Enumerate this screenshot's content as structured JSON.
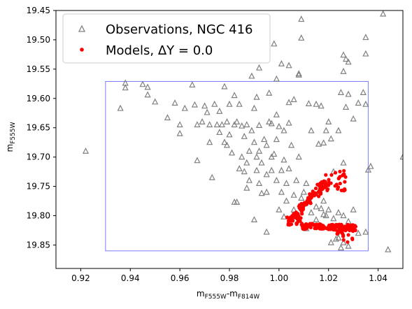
{
  "chart_data": {
    "type": "scatter",
    "xlabel_main": "m",
    "xlabel_sub1": "F555W",
    "xlabel_dash": "-m",
    "xlabel_sub2": "F814W",
    "ylabel_main": "m",
    "ylabel_sub": "F555W",
    "xlim": [
      0.91,
      1.05
    ],
    "ylim": [
      19.89,
      19.45
    ],
    "x_ticks": [
      0.92,
      0.94,
      0.96,
      0.98,
      1.0,
      1.02,
      1.04
    ],
    "x_tick_labels": [
      "0.92",
      "0.94",
      "0.96",
      "0.98",
      "1.00",
      "1.02",
      "1.04"
    ],
    "y_ticks": [
      19.45,
      19.5,
      19.55,
      19.6,
      19.65,
      19.7,
      19.75,
      19.8,
      19.85
    ],
    "y_tick_labels": [
      "19.45",
      "19.50",
      "19.55",
      "19.60",
      "19.65",
      "19.70",
      "19.75",
      "19.80",
      "19.85"
    ],
    "grid": false,
    "legend_position": "top-left",
    "selection_box": {
      "x": [
        0.93,
        1.036
      ],
      "y": [
        19.571,
        19.86
      ],
      "color": "#7b7bff"
    },
    "series": [
      {
        "name": "Observations, NGC 416",
        "marker": "triangle-open",
        "color": "#808080",
        "points": [
          [
            0.922,
            19.69
          ],
          [
            0.936,
            19.617
          ],
          [
            0.938,
            19.574
          ],
          [
            0.938,
            19.582
          ],
          [
            0.945,
            19.576
          ],
          [
            0.947,
            19.581
          ],
          [
            0.947,
            19.594
          ],
          [
            0.95,
            19.606
          ],
          [
            0.955,
            19.633
          ],
          [
            0.958,
            19.608
          ],
          [
            0.96,
            19.645
          ],
          [
            0.96,
            19.66
          ],
          [
            0.962,
            19.617
          ],
          [
            0.965,
            19.577
          ],
          [
            0.966,
            19.611
          ],
          [
            0.967,
            19.645
          ],
          [
            0.967,
            19.706
          ],
          [
            0.969,
            19.64
          ],
          [
            0.97,
            19.613
          ],
          [
            0.971,
            19.624
          ],
          [
            0.972,
            19.645
          ],
          [
            0.972,
            19.675
          ],
          [
            0.973,
            19.735
          ],
          [
            0.974,
            19.61
          ],
          [
            0.975,
            19.645
          ],
          [
            0.976,
            19.622
          ],
          [
            0.976,
            19.658
          ],
          [
            0.977,
            19.645
          ],
          [
            0.978,
            19.58
          ],
          [
            0.978,
            19.675
          ],
          [
            0.979,
            19.68
          ],
          [
            0.979,
            19.64
          ],
          [
            0.98,
            19.61
          ],
          [
            0.98,
            19.662
          ],
          [
            0.981,
            19.693
          ],
          [
            0.982,
            19.645
          ],
          [
            0.983,
            19.64
          ],
          [
            0.984,
            19.72
          ],
          [
            0.985,
            19.647
          ],
          [
            0.985,
            19.7
          ],
          [
            0.986,
            19.725
          ],
          [
            0.986,
            19.665
          ],
          [
            0.987,
            19.645
          ],
          [
            0.987,
            19.71
          ],
          [
            0.988,
            19.69
          ],
          [
            0.988,
            19.74
          ],
          [
            0.989,
            19.655
          ],
          [
            0.99,
            19.617
          ],
          [
            0.99,
            19.675
          ],
          [
            0.991,
            19.7
          ],
          [
            0.991,
            19.723
          ],
          [
            0.992,
            19.646
          ],
          [
            0.992,
            19.69
          ],
          [
            0.992,
            19.745
          ],
          [
            0.993,
            19.71
          ],
          [
            0.994,
            19.67
          ],
          [
            0.995,
            19.68
          ],
          [
            0.995,
            19.73
          ],
          [
            0.995,
            19.76
          ],
          [
            0.996,
            19.64
          ],
          [
            0.997,
            19.7
          ],
          [
            0.997,
            19.723
          ],
          [
            0.998,
            19.695
          ],
          [
            0.999,
            19.74
          ],
          [
            0.999,
            19.67
          ],
          [
            1.0,
            19.648
          ],
          [
            1.001,
            19.76
          ],
          [
            1.001,
            19.723
          ],
          [
            1.002,
            19.655
          ],
          [
            1.002,
            19.705
          ],
          [
            1.003,
            19.745
          ],
          [
            1.003,
            19.775
          ],
          [
            1.004,
            19.72
          ],
          [
            1.005,
            19.68
          ],
          [
            1.006,
            19.79
          ],
          [
            1.006,
            19.765
          ],
          [
            1.007,
            19.74
          ],
          [
            1.008,
            19.7
          ],
          [
            1.009,
            19.77
          ],
          [
            1.01,
            19.76
          ],
          [
            1.01,
            19.78
          ],
          [
            1.011,
            19.745
          ],
          [
            1.012,
            19.77
          ],
          [
            1.013,
            19.795
          ],
          [
            1.015,
            19.785
          ],
          [
            1.016,
            19.76
          ],
          [
            1.017,
            19.788
          ],
          [
            1.018,
            19.775
          ],
          [
            1.019,
            19.8
          ],
          [
            1.02,
            19.79
          ],
          [
            1.022,
            19.805
          ],
          [
            1.024,
            19.795
          ],
          [
            1.026,
            19.8
          ],
          [
            1.028,
            19.81
          ],
          [
            1.03,
            19.79
          ],
          [
            1.035,
            19.828
          ],
          [
            1.032,
            19.83
          ],
          [
            1.025,
            19.855
          ],
          [
            1.026,
            19.846
          ],
          [
            1.028,
            19.852
          ],
          [
            1.021,
            19.846
          ],
          [
            1.024,
            19.838
          ],
          [
            1.023,
            19.84
          ],
          [
            1.044,
            19.858
          ],
          [
            0.982,
            19.777
          ],
          [
            0.983,
            19.777
          ],
          [
            0.987,
            19.753
          ],
          [
            0.99,
            19.807
          ],
          [
            0.993,
            19.762
          ],
          [
            0.995,
            19.828
          ],
          [
            1.0,
            19.79
          ],
          [
            1.002,
            19.802
          ],
          [
            1.011,
            19.822
          ],
          [
            1.015,
            19.807
          ],
          [
            1.018,
            19.798
          ],
          [
            1.006,
            19.602
          ],
          [
            1.004,
            19.607
          ],
          [
            1.012,
            19.609
          ],
          [
            1.013,
            19.655
          ],
          [
            1.015,
            19.61
          ],
          [
            1.016,
            19.678
          ],
          [
            1.017,
            19.613
          ],
          [
            1.018,
            19.676
          ],
          [
            1.019,
            19.655
          ],
          [
            1.02,
            19.64
          ],
          [
            1.021,
            19.669
          ],
          [
            1.022,
            19.725
          ],
          [
            1.024,
            19.655
          ],
          [
            1.025,
            19.59
          ],
          [
            1.026,
            19.71
          ],
          [
            1.027,
            19.615
          ],
          [
            1.028,
            19.593
          ],
          [
            1.03,
            19.635
          ],
          [
            1.032,
            19.608
          ],
          [
            1.034,
            19.59
          ],
          [
            1.035,
            19.61
          ],
          [
            1.036,
            19.722
          ],
          [
            1.037,
            19.716
          ],
          [
            1.05,
            19.7
          ],
          [
            1.042,
            19.456
          ],
          [
            1.035,
            19.496
          ],
          [
            1.035,
            19.524
          ],
          [
            1.026,
            19.526
          ],
          [
            1.027,
            19.533
          ],
          [
            1.028,
            19.538
          ],
          [
            1.008,
            19.558
          ],
          [
            1.008,
            19.56
          ],
          [
            1.004,
            19.544
          ],
          [
            1.001,
            19.541
          ],
          [
            0.998,
            19.507
          ],
          [
            0.999,
            19.567
          ],
          [
            0.992,
            19.548
          ],
          [
            0.989,
            19.562
          ],
          [
            1.009,
            19.465
          ],
          [
            1.009,
            19.497
          ],
          [
            1.026,
            19.554
          ],
          [
            1.004,
            19.642
          ],
          [
            0.997,
            19.643
          ],
          [
            0.999,
            19.628
          ],
          [
            0.991,
            19.598
          ],
          [
            0.996,
            19.591
          ],
          [
            0.984,
            19.61
          ],
          [
            0.982,
            19.595
          ]
        ]
      },
      {
        "name": "Models, ΔY = 0.0",
        "marker": "dot",
        "color": "#ff0000",
        "points": []
      }
    ]
  },
  "legend": {
    "entries": [
      {
        "label": "Observations, NGC 416"
      },
      {
        "label": "Models, ΔY = 0.0"
      }
    ]
  }
}
